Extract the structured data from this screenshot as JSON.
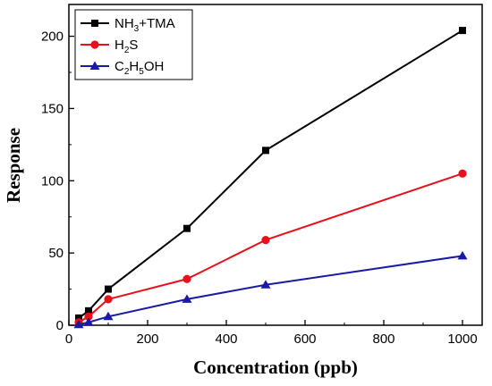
{
  "chart_data": {
    "type": "line",
    "title": "",
    "xlabel": "Concentration (ppb)",
    "ylabel": "Response",
    "xlim": [
      0,
      1050
    ],
    "ylim": [
      0,
      222
    ],
    "xticks": [
      0,
      200,
      400,
      600,
      800,
      1000
    ],
    "yticks": [
      0,
      50,
      100,
      150,
      200
    ],
    "x_tick_labels": [
      "0",
      "200",
      "400",
      "600",
      "800",
      "1000"
    ],
    "y_tick_labels": [
      "0",
      "50",
      "100",
      "150",
      "200"
    ],
    "grid": false,
    "legend_position": "top-left",
    "series": [
      {
        "name": "NH3+TMA",
        "legend_parts": [
          [
            "NH",
            false
          ],
          [
            "3",
            true
          ],
          [
            "+TMA",
            false
          ]
        ],
        "color": "#000000",
        "marker": "square",
        "x": [
          25,
          50,
          100,
          300,
          500,
          1000
        ],
        "y": [
          5,
          10,
          25,
          67,
          121,
          204
        ]
      },
      {
        "name": "H2S",
        "legend_parts": [
          [
            "H",
            false
          ],
          [
            "2",
            true
          ],
          [
            "S",
            false
          ]
        ],
        "color": "#e8101a",
        "marker": "circle",
        "x": [
          25,
          50,
          100,
          300,
          500,
          1000
        ],
        "y": [
          2,
          6,
          18,
          32,
          59,
          105
        ]
      },
      {
        "name": "C2H5OH",
        "legend_parts": [
          [
            "C",
            false
          ],
          [
            "2",
            true
          ],
          [
            "H",
            false
          ],
          [
            "5",
            true
          ],
          [
            "OH",
            false
          ]
        ],
        "color": "#1a1aa6",
        "marker": "triangle",
        "x": [
          25,
          50,
          100,
          300,
          500,
          1000
        ],
        "y": [
          0.5,
          2,
          6,
          18,
          28,
          48
        ]
      }
    ]
  }
}
